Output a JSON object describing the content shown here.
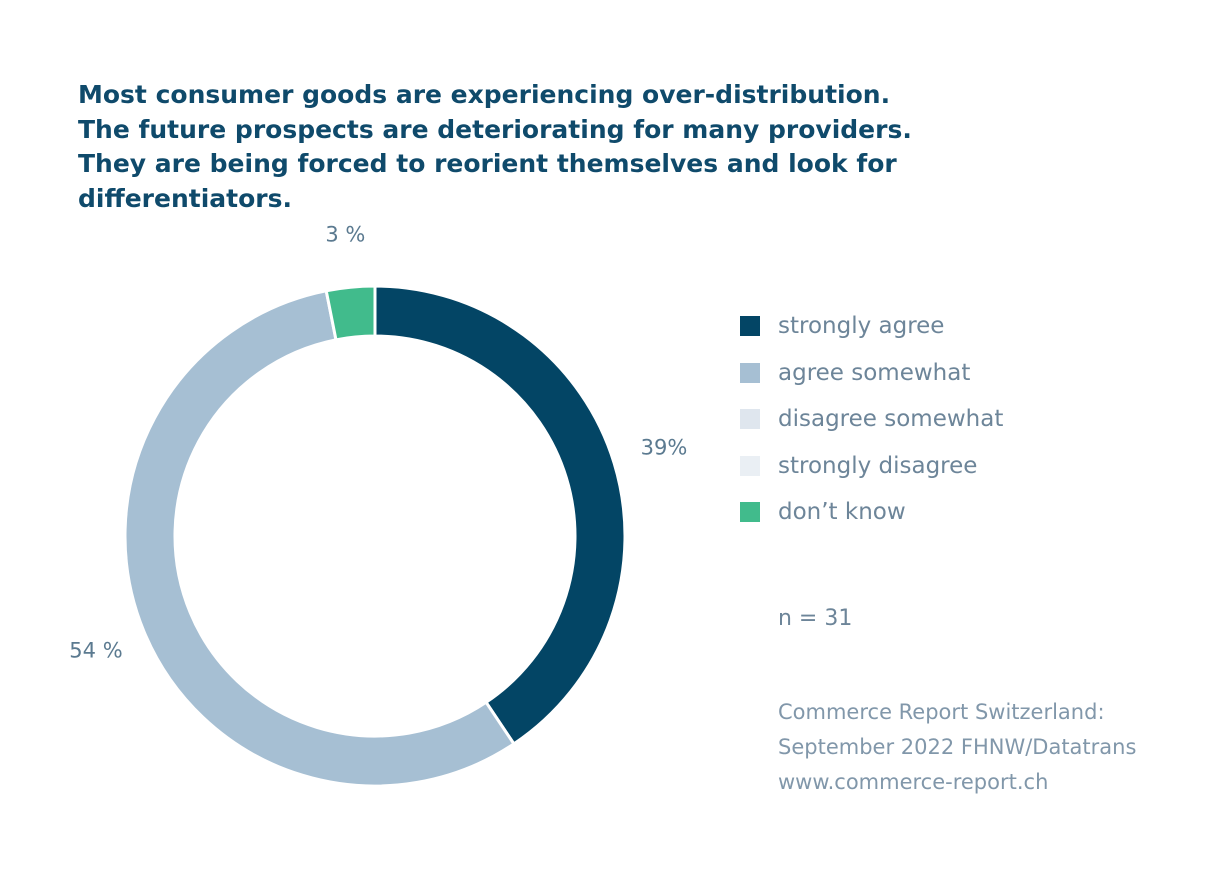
{
  "title_lines": [
    "Most consumer goods are experiencing over-distribution.",
    "The future prospects are deteriorating for many providers.",
    "They are being forced to reorient themselves and look for",
    "differentiators."
  ],
  "n_label": "n = 31",
  "source_lines": [
    "Commerce Report Switzerland:",
    "September 2022 FHNW/Datatrans",
    "www.commerce-report.ch"
  ],
  "legend": [
    {
      "label": "strongly agree",
      "color": "#034565"
    },
    {
      "label": "agree somewhat",
      "color": "#a6bfd3"
    },
    {
      "label": "disagree somewhat",
      "color": "#dfe6ee"
    },
    {
      "label": "strongly disagree",
      "color": "#eaeff4"
    },
    {
      "label": "don’t know",
      "color": "#41bb8c"
    }
  ],
  "chart_data": {
    "type": "pie",
    "donut": true,
    "start": "12 o'clock, clockwise",
    "slices": [
      {
        "name": "strongly agree",
        "value": 39,
        "label": "39%",
        "color": "#034565"
      },
      {
        "name": "agree somewhat",
        "value": 54,
        "label": "54 %",
        "color": "#a6bfd3"
      },
      {
        "name": "disagree somewhat",
        "value": 0,
        "label": "",
        "color": "#dfe6ee"
      },
      {
        "name": "strongly disagree",
        "value": 0,
        "label": "",
        "color": "#eaeff4"
      },
      {
        "name": "don’t know",
        "value": 3,
        "label": "3 %",
        "color": "#41bb8c"
      }
    ]
  }
}
